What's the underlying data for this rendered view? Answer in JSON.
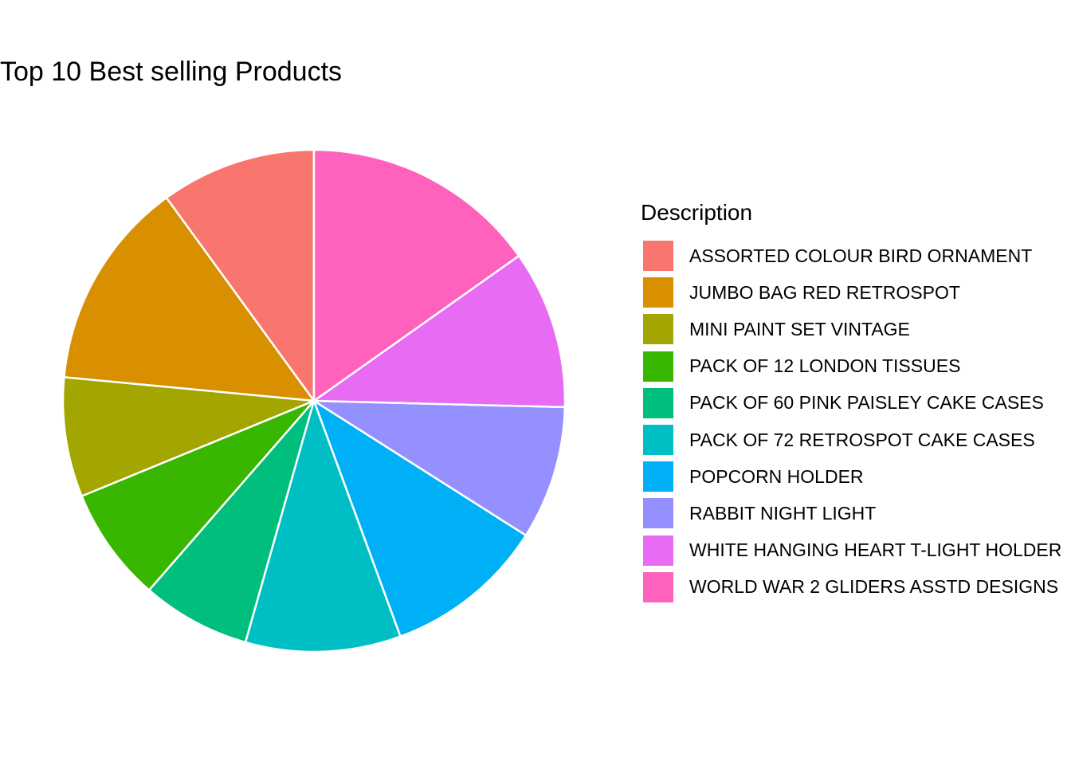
{
  "chart_data": {
    "type": "pie",
    "title": "Top 10 Best selling Products",
    "legend_title": "Description",
    "legend_position": "right",
    "categories": [
      "ASSORTED COLOUR BIRD ORNAMENT",
      "JUMBO BAG RED RETROSPOT",
      "MINI PAINT SET VINTAGE",
      "PACK OF 12 LONDON TISSUES",
      "PACK OF 60 PINK PAISLEY CAKE CASES",
      "PACK OF 72 RETROSPOT CAKE CASES",
      "POPCORN HOLDER",
      "RABBIT NIGHT LIGHT",
      "WHITE HANGING HEART T-LIGHT HOLDER",
      "WORLD WAR 2 GLIDERS ASSTD DESIGNS"
    ],
    "values": [
      10.0,
      13.5,
      7.7,
      7.4,
      7.0,
      10.0,
      10.4,
      8.6,
      10.2,
      15.2
    ],
    "colors": [
      "#F8766D",
      "#D89000",
      "#A3A500",
      "#39B600",
      "#00BF7D",
      "#00BFC4",
      "#00B0F6",
      "#9590FF",
      "#E76BF3",
      "#FF62BC"
    ],
    "direction": "counterclockwise",
    "start": "top"
  }
}
